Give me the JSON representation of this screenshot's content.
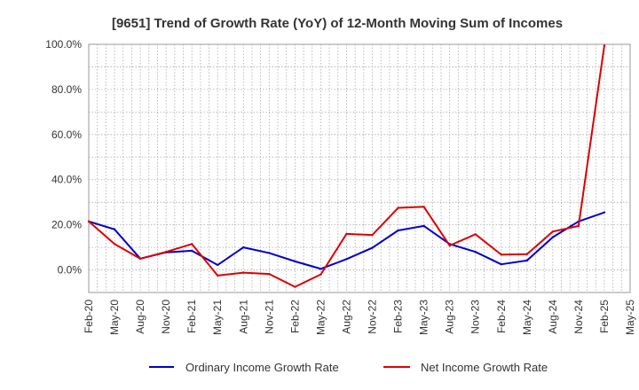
{
  "chart_data": {
    "type": "line",
    "title": "[9651]  Trend of Growth Rate (YoY) of 12-Month Moving Sum of Incomes",
    "xlabel": "",
    "ylabel": "",
    "ylim": [
      -10,
      100
    ],
    "y_ticks": [
      0,
      20,
      40,
      60,
      80,
      100
    ],
    "y_tick_labels": [
      "0.0%",
      "20.0%",
      "40.0%",
      "60.0%",
      "80.0%",
      "100.0%"
    ],
    "categories": [
      "Feb-20",
      "Mar-20",
      "Apr-20",
      "May-20",
      "Jun-20",
      "Jul-20",
      "Aug-20",
      "Sep-20",
      "Oct-20",
      "Nov-20",
      "Dec-20",
      "Jan-21",
      "Feb-21",
      "Mar-21",
      "Apr-21",
      "May-21",
      "Jun-21",
      "Jul-21",
      "Aug-21",
      "Sep-21",
      "Oct-21",
      "Nov-21",
      "Dec-21",
      "Jan-22",
      "Feb-22",
      "Mar-22",
      "Apr-22",
      "May-22",
      "Jun-22",
      "Jul-22",
      "Aug-22",
      "Sep-22",
      "Oct-22",
      "Nov-22",
      "Dec-22",
      "Jan-23",
      "Feb-23",
      "Mar-23",
      "Apr-23",
      "May-23",
      "Jun-23",
      "Jul-23",
      "Aug-23",
      "Sep-23",
      "Oct-23",
      "Nov-23",
      "Dec-23",
      "Jan-24",
      "Feb-24",
      "Mar-24",
      "Apr-24",
      "May-24",
      "Jun-24",
      "Jul-24",
      "Aug-24",
      "Sep-24",
      "Oct-24",
      "Nov-24",
      "Dec-24",
      "Jan-25",
      "Feb-25",
      "Mar-25",
      "Apr-25",
      "May-25"
    ],
    "x_tick_labels": [
      "Feb-20",
      "May-20",
      "Aug-20",
      "Nov-20",
      "Feb-21",
      "May-21",
      "Aug-21",
      "Nov-21",
      "Feb-22",
      "May-22",
      "Aug-22",
      "Nov-22",
      "Feb-23",
      "May-23",
      "Aug-23",
      "Nov-23",
      "Feb-24",
      "May-24",
      "Aug-24",
      "Nov-24",
      "Feb-25",
      "May-25"
    ],
    "grid": true,
    "legend_position": "bottom",
    "series": [
      {
        "name": "Ordinary Income Growth Rate",
        "color": "#0000cc",
        "x": [
          "Feb-20",
          "May-20",
          "Aug-20",
          "Nov-20",
          "Feb-21",
          "May-21",
          "Aug-21",
          "Nov-21",
          "Feb-22",
          "May-22",
          "Aug-22",
          "Nov-22",
          "Feb-23",
          "May-23",
          "Aug-23",
          "Nov-23",
          "Feb-24",
          "May-24",
          "Aug-24",
          "Nov-24",
          "Feb-25"
        ],
        "values": [
          21.5,
          18.0,
          5.0,
          7.8,
          8.5,
          2.2,
          10.0,
          7.5,
          3.8,
          0.5,
          4.8,
          9.8,
          17.5,
          19.5,
          11.5,
          8.0,
          2.5,
          4.2,
          14.5,
          21.5,
          25.5
        ]
      },
      {
        "name": "Net Income Growth Rate",
        "color": "#dd0000",
        "x": [
          "Feb-20",
          "May-20",
          "Aug-20",
          "Nov-20",
          "Feb-21",
          "May-21",
          "Aug-21",
          "Nov-21",
          "Feb-22",
          "May-22",
          "Aug-22",
          "Nov-22",
          "Feb-23",
          "May-23",
          "Aug-23",
          "Nov-23",
          "Feb-24",
          "May-24",
          "Aug-24",
          "Nov-24",
          "Feb-25"
        ],
        "values": [
          21.5,
          11.5,
          5.0,
          8.0,
          11.5,
          -2.5,
          -1.2,
          -1.8,
          -7.5,
          -2.0,
          16.0,
          15.5,
          27.5,
          28.0,
          10.8,
          15.8,
          6.8,
          7.0,
          17.0,
          19.5,
          99.5
        ]
      }
    ]
  }
}
